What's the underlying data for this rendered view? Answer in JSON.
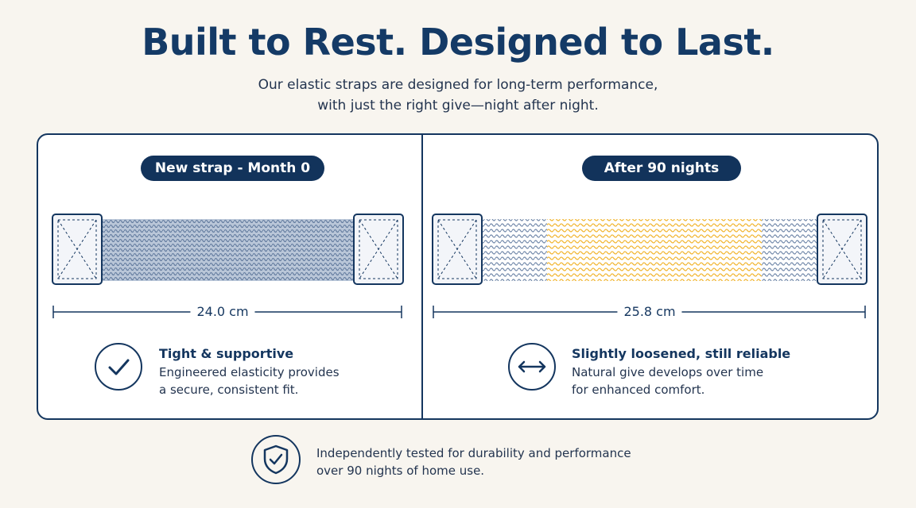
{
  "header": {
    "title": "Built to Rest. Designed to Last.",
    "subtitle_line1": "Our elastic straps are designed for long-term performance,",
    "subtitle_line2": "with just the right give—night after night."
  },
  "panels": [
    {
      "badge": "New strap - Month 0",
      "measurement": "24.0 cm",
      "feature_title": "Tight & supportive",
      "feature_desc_line1": "Engineered elasticity provides",
      "feature_desc_line2": "a secure, consistent fit.",
      "feature_icon": "checkmark-icon"
    },
    {
      "badge": "After 90 nights",
      "measurement": "25.8 cm",
      "feature_title": "Slightly loosened, still reliable",
      "feature_desc_line1": "Natural give develops over time",
      "feature_desc_line2": "for enhanced comfort.",
      "feature_icon": "double-arrow-icon"
    }
  ],
  "footer": {
    "text_line1": "Independently tested for durability and performance",
    "text_line2": "over 90 nights of home use.",
    "icon": "shield-check-icon"
  },
  "colors": {
    "navy": "#14365f",
    "strap_blue": "#6f86a8",
    "stretch_gold": "#f2b632",
    "background": "#f8f5ef"
  }
}
